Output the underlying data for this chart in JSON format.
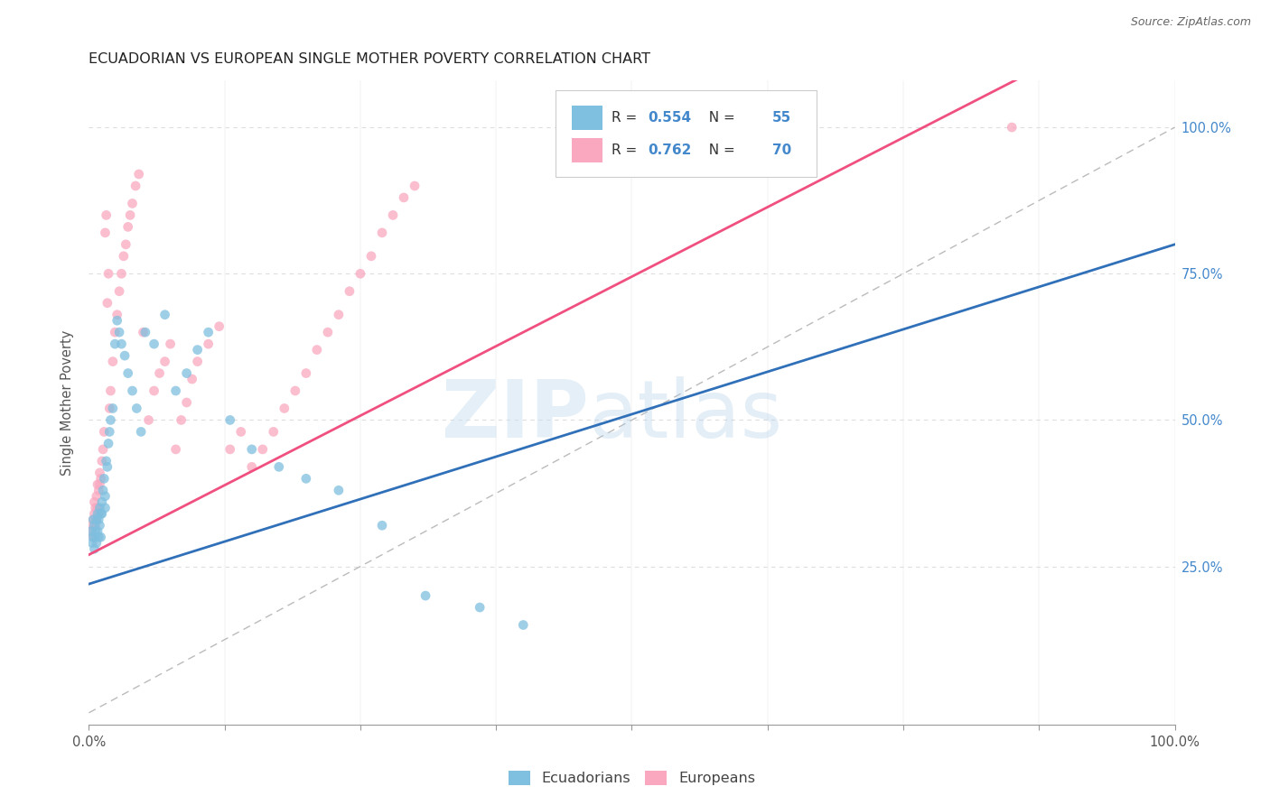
{
  "title": "ECUADORIAN VS EUROPEAN SINGLE MOTHER POVERTY CORRELATION CHART",
  "source": "Source: ZipAtlas.com",
  "ylabel": "Single Mother Poverty",
  "legend_r_blue": "R = ",
  "legend_v_blue": "0.554",
  "legend_n_label_blue": "  N = ",
  "legend_n_blue": "55",
  "legend_r_pink": "R = ",
  "legend_v_pink": "0.762",
  "legend_n_label_pink": "  N = ",
  "legend_n_pink": "70",
  "blue_scatter_color": "#7fbfdf",
  "pink_scatter_color": "#f9a8c0",
  "blue_line_color": "#3070b8",
  "pink_line_color": "#f05080",
  "gray_line_color": "#bbbbbb",
  "grid_color": "#dddddd",
  "right_tick_color": "#4488cc",
  "title_color": "#222222",
  "source_color": "#666666",
  "background_color": "#ffffff",
  "label_color": "#555555",
  "dot_size": 60,
  "dot_alpha": 0.75,
  "blue_line_slope": 0.58,
  "blue_line_intercept": 0.22,
  "pink_line_slope": 0.95,
  "pink_line_intercept": 0.27,
  "xlim": [
    0.0,
    1.0
  ],
  "ylim": [
    -0.02,
    1.08
  ],
  "right_yticks": [
    0.25,
    0.5,
    0.75,
    1.0
  ],
  "right_yticklabels": [
    "25.0%",
    "50.0%",
    "75.0%",
    "100.0%"
  ],
  "ecu_x": [
    0.002,
    0.003,
    0.004,
    0.004,
    0.005,
    0.005,
    0.006,
    0.006,
    0.007,
    0.007,
    0.008,
    0.008,
    0.009,
    0.009,
    0.01,
    0.01,
    0.011,
    0.011,
    0.012,
    0.012,
    0.013,
    0.014,
    0.015,
    0.015,
    0.016,
    0.017,
    0.018,
    0.019,
    0.02,
    0.022,
    0.024,
    0.026,
    0.028,
    0.03,
    0.033,
    0.036,
    0.04,
    0.044,
    0.048,
    0.052,
    0.06,
    0.07,
    0.08,
    0.09,
    0.1,
    0.11,
    0.13,
    0.15,
    0.175,
    0.2,
    0.23,
    0.27,
    0.31,
    0.36,
    0.4
  ],
  "ecu_y": [
    0.31,
    0.29,
    0.33,
    0.3,
    0.32,
    0.28,
    0.31,
    0.3,
    0.33,
    0.29,
    0.34,
    0.31,
    0.3,
    0.33,
    0.35,
    0.32,
    0.3,
    0.34,
    0.36,
    0.34,
    0.38,
    0.4,
    0.35,
    0.37,
    0.43,
    0.42,
    0.46,
    0.48,
    0.5,
    0.52,
    0.63,
    0.67,
    0.65,
    0.63,
    0.61,
    0.58,
    0.55,
    0.52,
    0.48,
    0.65,
    0.63,
    0.68,
    0.55,
    0.58,
    0.62,
    0.65,
    0.5,
    0.45,
    0.42,
    0.4,
    0.38,
    0.32,
    0.2,
    0.18,
    0.15
  ],
  "eur_x": [
    0.002,
    0.003,
    0.004,
    0.004,
    0.005,
    0.005,
    0.006,
    0.006,
    0.007,
    0.007,
    0.008,
    0.008,
    0.009,
    0.009,
    0.01,
    0.01,
    0.011,
    0.012,
    0.013,
    0.014,
    0.015,
    0.016,
    0.017,
    0.018,
    0.019,
    0.02,
    0.022,
    0.024,
    0.026,
    0.028,
    0.03,
    0.032,
    0.034,
    0.036,
    0.038,
    0.04,
    0.043,
    0.046,
    0.05,
    0.055,
    0.06,
    0.065,
    0.07,
    0.075,
    0.08,
    0.085,
    0.09,
    0.095,
    0.1,
    0.11,
    0.12,
    0.13,
    0.14,
    0.15,
    0.16,
    0.17,
    0.18,
    0.19,
    0.2,
    0.21,
    0.22,
    0.23,
    0.24,
    0.25,
    0.26,
    0.27,
    0.28,
    0.29,
    0.3,
    0.85
  ],
  "eur_y": [
    0.31,
    0.32,
    0.3,
    0.33,
    0.34,
    0.36,
    0.32,
    0.35,
    0.33,
    0.37,
    0.35,
    0.39,
    0.34,
    0.38,
    0.39,
    0.41,
    0.4,
    0.43,
    0.45,
    0.48,
    0.82,
    0.85,
    0.7,
    0.75,
    0.52,
    0.55,
    0.6,
    0.65,
    0.68,
    0.72,
    0.75,
    0.78,
    0.8,
    0.83,
    0.85,
    0.87,
    0.9,
    0.92,
    0.65,
    0.5,
    0.55,
    0.58,
    0.6,
    0.63,
    0.45,
    0.5,
    0.53,
    0.57,
    0.6,
    0.63,
    0.66,
    0.45,
    0.48,
    0.42,
    0.45,
    0.48,
    0.52,
    0.55,
    0.58,
    0.62,
    0.65,
    0.68,
    0.72,
    0.75,
    0.78,
    0.82,
    0.85,
    0.88,
    0.9,
    1.0
  ]
}
